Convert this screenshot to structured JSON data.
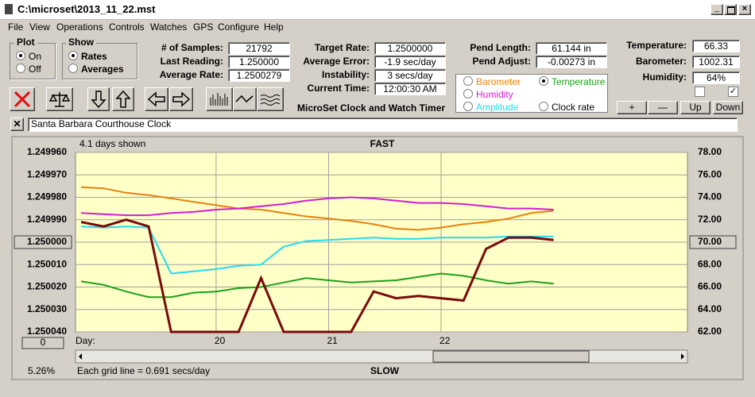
{
  "window": {
    "title": "C:\\microset\\2013_11_22.mst"
  },
  "menu": [
    "File",
    "View",
    "Operations",
    "Controls",
    "Watches",
    "GPS",
    "Configure",
    "Help"
  ],
  "plot_group": {
    "label": "Plot",
    "options": [
      "On",
      "Off"
    ]
  },
  "show_group": {
    "label": "Show",
    "options": [
      "Rates",
      "Averages"
    ]
  },
  "fields": [
    {
      "label": "# of Samples:",
      "value": "21792"
    },
    {
      "label": "Last Reading:",
      "value": "1.250000"
    },
    {
      "label": "Average Rate:",
      "value": "1.2500279"
    },
    {
      "label": "Target Rate:",
      "value": "1.2500000"
    },
    {
      "label": "Average Error:",
      "value": "-1.9 sec/day"
    },
    {
      "label": "Instability:",
      "value": "3 secs/day"
    },
    {
      "label": "Current Time:",
      "value": "12:00:30 AM"
    },
    {
      "label": "Pend Length:",
      "value": "61.144 in"
    },
    {
      "label": "Pend Adjust:",
      "value": "-0.00273 in"
    },
    {
      "label": "Temperature:",
      "value": "66.33"
    },
    {
      "label": "Barometer:",
      "value": "1002.31"
    },
    {
      "label": "Humidity:",
      "value": "64%"
    }
  ],
  "app_title": "MicroSet Clock and Watch Timer",
  "buttons": [
    "+",
    "—",
    "Up",
    "Down"
  ],
  "clock_name": "Santa Barbara Courthouse Clock",
  "chart_data": {
    "type": "line",
    "days_shown": "4.1 days shown",
    "top_label": "FAST",
    "bottom_label": "SLOW",
    "x_label": "Day:",
    "grid_note": "Each grid line = 0.691 secs/day",
    "percent": "5.26%",
    "offset_button": "0",
    "x": [
      18.8,
      19.0,
      19.2,
      19.4,
      19.6,
      19.8,
      20.0,
      20.2,
      20.4,
      20.6,
      20.8,
      21.0,
      21.2,
      21.4,
      21.6,
      21.8,
      22.0,
      22.2,
      22.4,
      22.6,
      22.8,
      23.0
    ],
    "xlim": [
      18.75,
      24.19
    ],
    "xticks": [
      20,
      21,
      22
    ],
    "ylim": [
      1.24996,
      1.25004
    ],
    "yticks": [
      {
        "value": 1.24996,
        "label": "1.249960"
      },
      {
        "value": 1.24997,
        "label": "1.249970"
      },
      {
        "value": 1.24998,
        "label": "1.249980"
      },
      {
        "value": 1.24999,
        "label": "1.249990"
      },
      {
        "value": 1.25,
        "label": "1.250000"
      },
      {
        "value": 1.25001,
        "label": "1.250010"
      },
      {
        "value": 1.25002,
        "label": "1.250020"
      },
      {
        "value": 1.25003,
        "label": "1.250030"
      },
      {
        "value": 1.25004,
        "label": "1.250040"
      }
    ],
    "y_reference": 1.25,
    "y2lim": [
      62,
      78
    ],
    "y2ticks": [
      {
        "value": 62,
        "label": "62.00"
      },
      {
        "value": 64,
        "label": "64.00"
      },
      {
        "value": 66,
        "label": "66.00"
      },
      {
        "value": 68,
        "label": "68.00"
      },
      {
        "value": 70,
        "label": "70.00"
      },
      {
        "value": 72,
        "label": "72.00"
      },
      {
        "value": 74,
        "label": "74.00"
      },
      {
        "value": 76,
        "label": "76.00"
      },
      {
        "value": 78,
        "label": "78.00"
      }
    ],
    "y2_reference": 70,
    "grid": true,
    "series": [
      {
        "name": "Barometer",
        "color": "#e8820c",
        "axis": "y2",
        "values": [
          74.9,
          74.8,
          74.4,
          74.2,
          73.9,
          73.6,
          73.3,
          73.0,
          72.9,
          72.6,
          72.3,
          72.1,
          71.9,
          71.6,
          71.2,
          71.1,
          71.3,
          71.6,
          71.8,
          72.1,
          72.6,
          72.8
        ]
      },
      {
        "name": "Temperature",
        "color": "#1aa31a",
        "axis": "y2",
        "values": [
          66.5,
          66.2,
          65.6,
          65.1,
          65.1,
          65.5,
          65.6,
          65.9,
          66.0,
          66.4,
          66.8,
          66.6,
          66.4,
          66.5,
          66.6,
          66.9,
          67.2,
          67.0,
          66.6,
          66.3,
          66.5,
          66.3
        ]
      },
      {
        "name": "Humidity",
        "color": "#d21ed2",
        "axis": "y2",
        "values": [
          72.6,
          72.5,
          72.4,
          72.4,
          72.6,
          72.7,
          72.9,
          73.0,
          73.2,
          73.4,
          73.7,
          73.9,
          74.0,
          73.9,
          73.7,
          73.5,
          73.5,
          73.4,
          73.2,
          73.0,
          73.0,
          72.9
        ]
      },
      {
        "name": "Amplitude",
        "color": "#22dcec",
        "axis": "y2",
        "values": [
          71.4,
          71.3,
          71.4,
          71.3,
          67.2,
          67.4,
          67.6,
          67.9,
          68.0,
          69.6,
          70.1,
          70.2,
          70.3,
          70.4,
          70.3,
          70.3,
          70.4,
          70.4,
          70.4,
          70.5,
          70.5,
          70.5
        ]
      },
      {
        "name": "Clock rate",
        "color": "#7a0a0a",
        "axis": "y",
        "values": [
          1.249991,
          1.249993,
          1.24999,
          1.249993,
          1.25004,
          1.25004,
          1.25004,
          1.25004,
          1.250016,
          1.25004,
          1.25004,
          1.25004,
          1.25004,
          1.250022,
          1.250025,
          1.250024,
          1.250025,
          1.250026,
          1.250003,
          1.249998,
          1.249998,
          1.249999
        ]
      }
    ],
    "selected_series": "Temperature"
  }
}
